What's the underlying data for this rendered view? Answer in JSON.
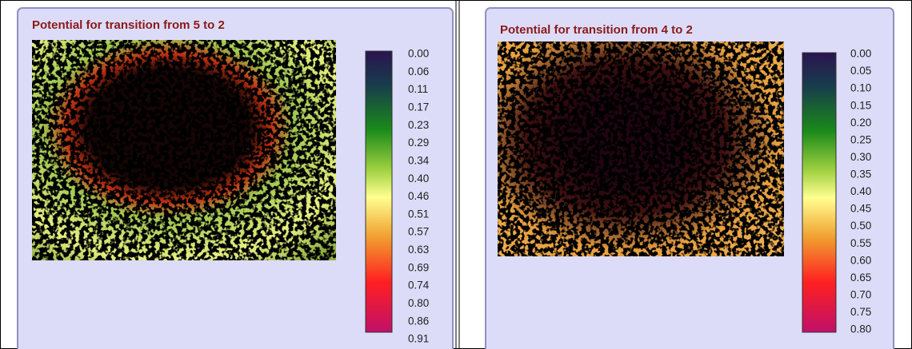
{
  "panels": [
    {
      "title": "Potential for transition from 5 to 2",
      "legend": [
        "0.00",
        "0.06",
        "0.11",
        "0.17",
        "0.23",
        "0.29",
        "0.34",
        "0.40",
        "0.46",
        "0.51",
        "0.57",
        "0.63",
        "0.69",
        "0.74",
        "0.80",
        "0.86",
        "0.91"
      ]
    },
    {
      "title": "Potential for transition from 4 to 2",
      "legend": [
        "0.00",
        "0.05",
        "0.10",
        "0.15",
        "0.20",
        "0.25",
        "0.30",
        "0.35",
        "0.40",
        "0.45",
        "0.50",
        "0.55",
        "0.60",
        "0.65",
        "0.70",
        "0.75",
        "0.80"
      ]
    }
  ]
}
